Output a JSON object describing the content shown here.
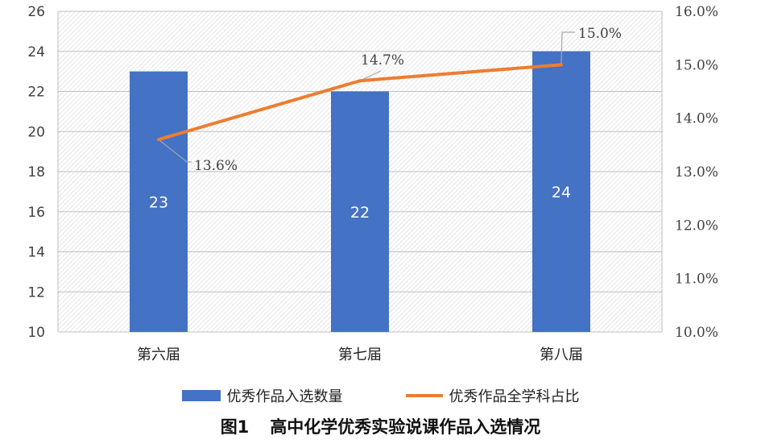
{
  "chart_data": {
    "type": "bar",
    "categories": [
      "第六届",
      "第七届",
      "第八届"
    ],
    "series": [
      {
        "name": "优秀作品入选数量",
        "kind": "bar",
        "axis": "left",
        "values": [
          23,
          22,
          24
        ],
        "labels": [
          "23",
          "22",
          "24"
        ],
        "color": "#4472c4"
      },
      {
        "name": "优秀作品全学科占比",
        "kind": "line",
        "axis": "right",
        "values": [
          13.6,
          14.7,
          15.0
        ],
        "labels": [
          "13.6%",
          "14.7%",
          "15.0%"
        ],
        "color": "#ed7d31"
      }
    ],
    "y_left": {
      "min": 10,
      "max": 26,
      "step": 2,
      "ticks": [
        "10",
        "12",
        "14",
        "16",
        "18",
        "20",
        "22",
        "24",
        "26"
      ]
    },
    "y_right": {
      "min": 10.0,
      "max": 16.0,
      "step": 1,
      "ticks": [
        "10.0%",
        "11.0%",
        "12.0%",
        "13.0%",
        "14.0%",
        "15.0%",
        "16.0%"
      ]
    },
    "grid": true,
    "legend_position": "bottom"
  },
  "caption": {
    "number": "图1",
    "title": "高中化学优秀实验说课作品入选情况"
  }
}
